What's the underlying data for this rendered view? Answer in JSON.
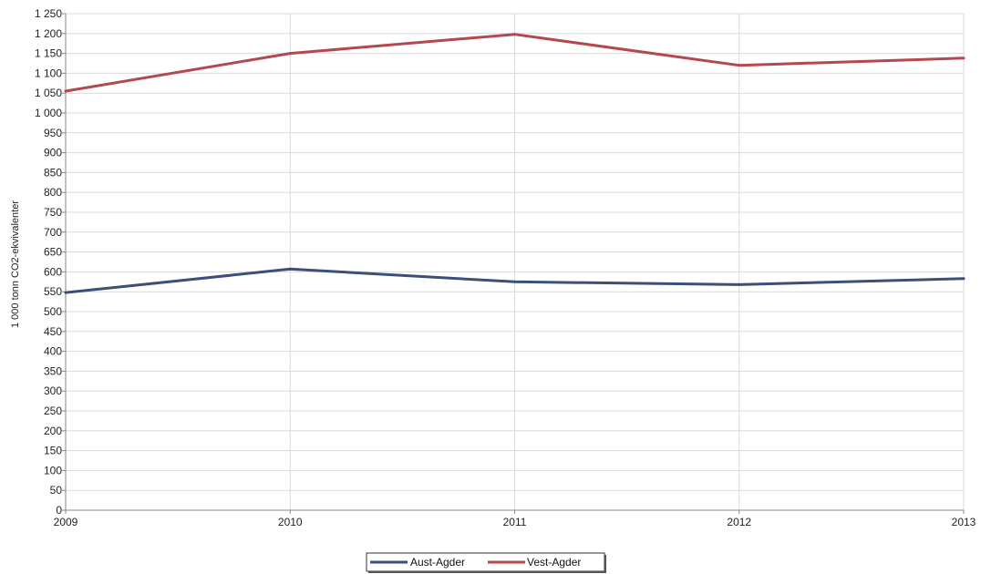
{
  "chart_data": {
    "type": "line",
    "xlabel": "",
    "ylabel": "1 000 tonn CO2-ekvivalenter",
    "x": [
      "2009",
      "2010",
      "2011",
      "2012",
      "2013"
    ],
    "xlim": [
      2009,
      2013
    ],
    "ylim": [
      0,
      1250
    ],
    "ytick_step": 50,
    "yticks": [
      "0",
      "50",
      "100",
      "150",
      "200",
      "250",
      "300",
      "350",
      "400",
      "450",
      "500",
      "550",
      "600",
      "650",
      "700",
      "750",
      "800",
      "850",
      "900",
      "950",
      "1 000",
      "1 050",
      "1 100",
      "1 150",
      "1 200",
      "1 250"
    ],
    "grid": true,
    "legend": "bottom-center",
    "series": [
      {
        "name": "Aust-Agder",
        "color": "#3b4f78",
        "values": [
          548,
          607,
          575,
          568,
          583
        ]
      },
      {
        "name": "Vest-Agder",
        "color": "#b4484e",
        "values": [
          1055,
          1150,
          1198,
          1120,
          1138
        ]
      }
    ]
  }
}
